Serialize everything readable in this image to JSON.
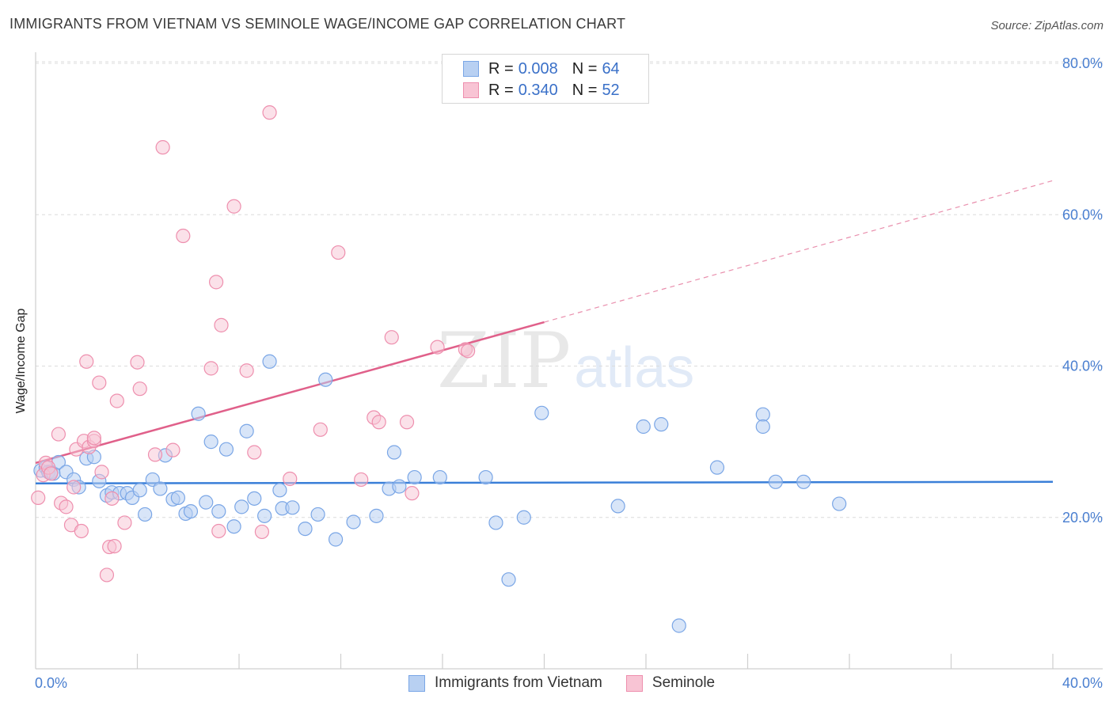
{
  "title": "IMMIGRANTS FROM VIETNAM VS SEMINOLE WAGE/INCOME GAP CORRELATION CHART",
  "source": "Source: ZipAtlas.com",
  "watermark": {
    "zip": "ZIP",
    "atlas": "atlas"
  },
  "legend_top": [
    {
      "r_label": "R =",
      "r_value": "0.008",
      "n_label": "N =",
      "n_value": "64"
    },
    {
      "r_label": "R =",
      "r_value": "0.340",
      "n_label": "N =",
      "n_value": "52"
    }
  ],
  "legend_bottom": [
    {
      "label": "Immigrants from Vietnam"
    },
    {
      "label": "Seminole"
    }
  ],
  "colors": {
    "blue_fill": "#b8d0f2",
    "blue_stroke": "#7aa6e6",
    "blue_line": "#3a7fd8",
    "pink_fill": "#f8c4d4",
    "pink_stroke": "#ee8fae",
    "pink_line": "#e0608a",
    "tick_text": "#4a7fd0",
    "grid": "#dcdcdc"
  },
  "chart_data": {
    "type": "scatter",
    "title": "IMMIGRANTS FROM VIETNAM VS SEMINOLE WAGE/INCOME GAP CORRELATION CHART",
    "xlabel": "",
    "ylabel": "Wage/Income Gap",
    "xlim": [
      0,
      40
    ],
    "ylim": [
      0,
      80
    ],
    "x_tick_labels": [
      "0.0%",
      "40.0%"
    ],
    "y_tick_labels": [
      "20.0%",
      "40.0%",
      "60.0%",
      "80.0%"
    ],
    "y_ticks": [
      20,
      40,
      60,
      80
    ],
    "grid": "horizontal dashed",
    "legend_placement": "top-center",
    "series": [
      {
        "name": "Immigrants from Vietnam",
        "color": "#7aa6e6",
        "trend": {
          "x": [
            0,
            40
          ],
          "y": [
            24.5,
            24.7
          ]
        },
        "points": [
          [
            0.2,
            26.2
          ],
          [
            0.4,
            26.6
          ],
          [
            0.5,
            26.0
          ],
          [
            0.6,
            26.0
          ],
          [
            0.7,
            25.8
          ],
          [
            0.9,
            27.3
          ],
          [
            1.2,
            26.0
          ],
          [
            1.5,
            25.0
          ],
          [
            1.7,
            24.0
          ],
          [
            2.0,
            27.8
          ],
          [
            2.3,
            28.0
          ],
          [
            2.5,
            24.8
          ],
          [
            2.8,
            22.9
          ],
          [
            3.0,
            23.3
          ],
          [
            3.3,
            23.2
          ],
          [
            3.6,
            23.2
          ],
          [
            3.8,
            22.6
          ],
          [
            4.1,
            23.6
          ],
          [
            4.3,
            20.4
          ],
          [
            4.6,
            25.0
          ],
          [
            4.9,
            23.8
          ],
          [
            5.1,
            28.2
          ],
          [
            5.4,
            22.4
          ],
          [
            5.6,
            22.6
          ],
          [
            5.9,
            20.5
          ],
          [
            6.1,
            20.8
          ],
          [
            6.4,
            33.7
          ],
          [
            6.7,
            22.0
          ],
          [
            6.9,
            30.0
          ],
          [
            7.2,
            20.8
          ],
          [
            7.5,
            29.0
          ],
          [
            7.8,
            18.8
          ],
          [
            8.1,
            21.4
          ],
          [
            8.3,
            31.4
          ],
          [
            8.6,
            22.5
          ],
          [
            9.0,
            20.2
          ],
          [
            9.2,
            40.6
          ],
          [
            9.6,
            23.6
          ],
          [
            9.7,
            21.2
          ],
          [
            10.1,
            21.3
          ],
          [
            10.6,
            18.5
          ],
          [
            11.1,
            20.4
          ],
          [
            11.4,
            38.2
          ],
          [
            11.8,
            17.1
          ],
          [
            12.5,
            19.4
          ],
          [
            13.4,
            20.2
          ],
          [
            13.9,
            23.8
          ],
          [
            14.1,
            28.6
          ],
          [
            14.3,
            24.1
          ],
          [
            14.9,
            25.3
          ],
          [
            15.9,
            25.3
          ],
          [
            17.7,
            25.3
          ],
          [
            18.1,
            19.3
          ],
          [
            18.6,
            11.8
          ],
          [
            19.2,
            20.0
          ],
          [
            19.9,
            33.8
          ],
          [
            22.9,
            21.5
          ],
          [
            23.9,
            32.0
          ],
          [
            24.6,
            32.3
          ],
          [
            25.3,
            5.7
          ],
          [
            26.8,
            26.6
          ],
          [
            28.6,
            33.6
          ],
          [
            28.6,
            32.0
          ],
          [
            29.1,
            24.7
          ],
          [
            30.2,
            24.7
          ],
          [
            31.6,
            21.8
          ]
        ]
      },
      {
        "name": "Seminole",
        "color": "#ee8fae",
        "trend": {
          "x": [
            0,
            20
          ],
          "y": [
            27.2,
            45.8
          ]
        },
        "trend_extension": {
          "x": [
            20,
            40
          ],
          "y": [
            45.8,
            64.5
          ]
        },
        "points": [
          [
            0.1,
            22.6
          ],
          [
            0.3,
            25.6
          ],
          [
            0.4,
            27.2
          ],
          [
            0.5,
            26.6
          ],
          [
            0.6,
            25.8
          ],
          [
            0.9,
            31.0
          ],
          [
            1.0,
            21.9
          ],
          [
            1.2,
            21.4
          ],
          [
            1.4,
            19.0
          ],
          [
            1.5,
            24.0
          ],
          [
            1.6,
            29.0
          ],
          [
            1.8,
            18.2
          ],
          [
            1.9,
            30.1
          ],
          [
            2.0,
            40.6
          ],
          [
            2.1,
            29.3
          ],
          [
            2.3,
            30.1
          ],
          [
            2.3,
            30.5
          ],
          [
            2.5,
            37.8
          ],
          [
            2.6,
            26.0
          ],
          [
            2.8,
            12.4
          ],
          [
            2.9,
            16.1
          ],
          [
            3.0,
            22.5
          ],
          [
            3.1,
            16.2
          ],
          [
            3.2,
            35.4
          ],
          [
            3.5,
            19.3
          ],
          [
            4.0,
            40.5
          ],
          [
            4.1,
            37.0
          ],
          [
            4.7,
            28.3
          ],
          [
            5.0,
            68.9
          ],
          [
            5.4,
            28.9
          ],
          [
            5.8,
            57.2
          ],
          [
            6.9,
            39.7
          ],
          [
            7.1,
            51.1
          ],
          [
            7.2,
            18.2
          ],
          [
            7.3,
            45.4
          ],
          [
            7.8,
            61.1
          ],
          [
            8.3,
            39.4
          ],
          [
            8.6,
            28.6
          ],
          [
            8.9,
            18.1
          ],
          [
            9.2,
            73.5
          ],
          [
            10.0,
            25.1
          ],
          [
            11.2,
            31.6
          ],
          [
            11.9,
            55.0
          ],
          [
            12.8,
            25.0
          ],
          [
            13.3,
            33.2
          ],
          [
            13.5,
            32.6
          ],
          [
            14.0,
            43.8
          ],
          [
            14.6,
            32.6
          ],
          [
            14.8,
            23.2
          ],
          [
            15.8,
            42.5
          ],
          [
            16.9,
            42.2
          ],
          [
            17.0,
            42.0
          ]
        ]
      }
    ]
  }
}
